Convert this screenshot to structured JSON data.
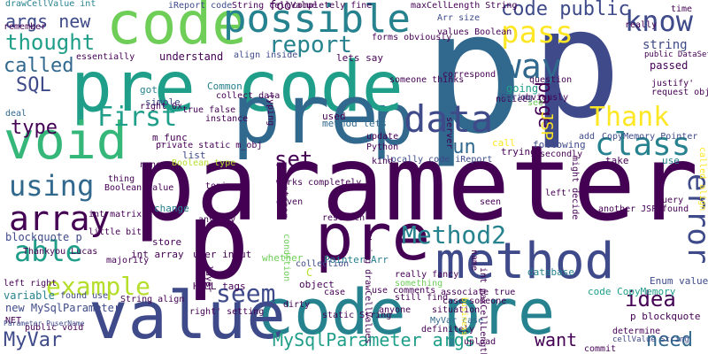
{
  "palette": {
    "dark_purple": "#440154",
    "indigo": "#3e4a89",
    "blue": "#31688e",
    "teal": "#26828e",
    "green": "#1f9e89",
    "mint": "#35b779",
    "lime": "#6ece58",
    "yellow_green": "#b5de2b",
    "yellow": "#fde725"
  },
  "words": {
    "parameter": "parameter",
    "p1": "p",
    "p2": "p",
    "p3": "p",
    "p4": "p",
    "pre_code": "pre code",
    "code_pre": "code pre",
    "pre1": "pre",
    "pre2": "pre",
    "code": "code",
    "value": "value",
    "void": "void",
    "method": "method",
    "possible": "possible",
    "data": "data",
    "class": "class",
    "array": "array",
    "using": "using",
    "able": "able",
    "example": "example",
    "seem": "seem",
    "Method2": "Method2",
    "way": "way",
    "pass": "pass",
    "know": "know",
    "report": "report",
    "code_public": "code public",
    "Thank": "Thank",
    "First": "First",
    "error": "error",
    "idea": "idea",
    "need": "need",
    "want": "want",
    "thought": "thought",
    "called": "called",
    "SQL": "SQL",
    "type": "type",
    "set": "set",
    "run": "run",
    "MyVar": "MyVar",
    "MySqlParameter_args": "MySqlParameter args",
    "args_new": "args new",
    "page": "page",
    "JSP": "JSP",
    "drawCellValue_int": "drawCellValue int",
    "iReport_code": "iReport code",
    "foo": "foo",
    "string": "string",
    "passed": "passed",
    "understand": "understand",
    "going": "going",
    "new_MySqlParameter": "new MySqlParameter",
    "variable": "variable",
    "blockquote_p": "blockquote p",
    "int_array": "int array",
    "object": "object",
    "simple": "simple",
    "Common": "Common",
    "m_func": "m_func",
    "list": "list",
    "store": "store",
    "change": "change",
    "Pointer_Arr": "Pointer Arr",
    "whether": "whether",
    "code_CopyMemory": "code CopyMemory",
    "p_blockquote": "p blockquote",
    "Enum_value": "Enum value",
    "database": "database",
    "user_input": "user input",
    "HTML_tags": "HTML tags",
    "got": "got",
    "lets_say": "lets say",
    "used": "used",
    "method_lets": "method lets",
    "trying": "trying",
    "call": "call",
    "following": "following",
    "take": "take",
    "use": "use",
    "deal": "deal",
    "NET": "NET",
    "found_use": "found use",
    "little_bit": "little bit",
    "Thankyou_Lucas": "Thankyou Lucas",
    "int_matrix": "int matrix",
    "collection": "collection",
    "research": "research",
    "case": "case",
    "dirty": "dirty",
    "static_String": "static String",
    "situation": "situation",
    "definitely": "definitely",
    "upload": "upload",
    "commit": "commit",
    "determine": "determine",
    "MyVar_case": "MyVar case",
    "Python": "Python",
    "locally_code_iReport": "locally code iReport",
    "secondly": "secondly",
    "question": "question",
    "notice": "notice",
    "see": "see",
    "justify": "justify'",
    "request_object": "request object",
    "query": "query",
    "found": "found",
    "another_JSP": "another JSP",
    "CopyMemory_Pointer": "CopyMemory Pointer",
    "Arr_size": "Arr size",
    "values_Boolean": "values Boolean",
    "forms_obviously": "forms obviously",
    "completely_fine": "completely fine",
    "maxCellLength_String": "maxCellLength String",
    "String_cellValue": "String cellValue",
    "remember": "remember",
    "essentially": "essentially",
    "instance": "instance",
    "private_static_m_obj": "private static m_obj",
    "true_false": "true false",
    "collect_data": "collect data",
    "update": "update",
    "Boolean_type": "Boolean type",
    "Boolean_value": "Boolean value",
    "thing": "thing",
    "none": "none",
    "topics": "topics",
    "String_align": "String align",
    "Parameter_PuserName": "Parameter PuserName",
    "public_void": "public void",
    "left_right": "left right",
    "majority": "majority",
    "right_setting": "right' setting",
    "still_find": "still find",
    "use_comments": "use comments",
    "case_someone": "case someone",
    "something": "something",
    "really_fancy": "really fancy",
    "associate_true": "associate true",
    "kind": "kind",
    "seen": "seen",
    "name": "name",
    "business": "business",
    "time": "time",
    "really": "really",
    "public_DataSet": "public DataSet",
    "called_align": "called align",
    "cellValue_String": "cellValue String",
    "int_maxCellLength": "int maxCellLength",
    "String_drawCellValues": "String drawCellValues",
    "server": "server",
    "anyone": "anyone",
    "integer": "integer",
    "typing": "typing",
    "layer": "layer",
    "add": "add",
    "left": "left'",
    "might_decide": "might decide",
    "C": "C",
    "works_completely": "works completely",
    "given": "given",
    "condition": "condition",
    "someone_thinks": "someone thinks",
    "correspond": "correspond",
    "obviously": "obviously",
    "String": "String",
    "right_0x": "right 0x",
    "align_inside": "align inside",
    "anybody": "anybody"
  }
}
